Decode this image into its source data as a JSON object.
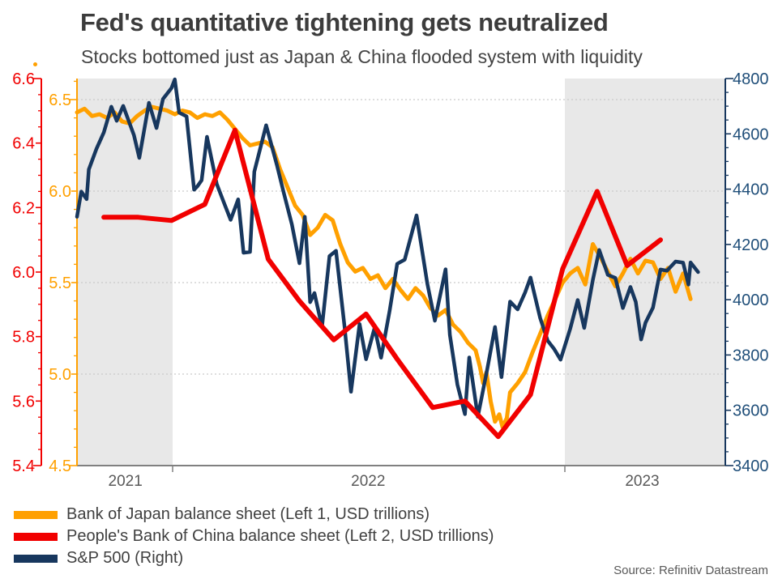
{
  "header": {
    "title": "Fed's quantitative tightening gets neutralized",
    "subtitle": "Stocks bottomed just as Japan & China flooded system with liquidity"
  },
  "source": "Source: Refinitiv Datastream",
  "colors": {
    "orange": "#FFA000",
    "red": "#F10000",
    "navy": "#17375E",
    "right_axis_label": "#1F4E79",
    "band": "#E8E8E8",
    "gridline": "#C9C9C9",
    "axis_gray": "#808080",
    "year_label": "#595959",
    "title_text": "#3C3C3C"
  },
  "legend": [
    {
      "label": "Bank of Japan balance sheet (Left 1, USD trillions)",
      "color": "#FFA000"
    },
    {
      "label": "People's Bank of China balance sheet (Left 2, USD trillions)",
      "color": "#F10000"
    },
    {
      "label": "S&P 500 (Right)",
      "color": "#17375E"
    }
  ],
  "chart_data": {
    "type": "line",
    "title": "Fed's quantitative tightening gets neutralized",
    "subtitle": "Stocks bottomed just as Japan & China flooded system with liquidity",
    "x_axis": {
      "range": [
        "2021-10-04",
        "2023-05-30"
      ],
      "ticks": [
        "2022-01-01",
        "2023-01-01"
      ],
      "year_labels": [
        {
          "text": "2021",
          "date": "2021-11-18"
        },
        {
          "text": "2022",
          "date": "2022-07-02"
        },
        {
          "text": "2023",
          "date": "2023-03-14"
        }
      ]
    },
    "shaded_regions": [
      [
        "2021-10-04",
        "2022-01-01"
      ],
      [
        "2023-01-01",
        "2023-05-30"
      ]
    ],
    "axes": {
      "left1": {
        "min": 4.5,
        "max": 6.615,
        "major_ticks": [
          4.5,
          5.0,
          5.5,
          6.0,
          6.5
        ],
        "minor_step": 0.1,
        "color": "#FFA000",
        "label_color": "#FFA000",
        "gridline_values": [
          5.0,
          5.5,
          6.0,
          6.5
        ]
      },
      "left2": {
        "min": 5.4,
        "max": 6.6,
        "major_ticks": [
          5.4,
          5.6,
          5.8,
          6.0,
          6.2,
          6.4,
          6.6
        ],
        "minor_step": 0.05,
        "color": "#F10000",
        "label_color": "#F10000"
      },
      "right": {
        "min": 3400,
        "max": 4800,
        "major_ticks": [
          3400,
          3600,
          3800,
          4000,
          4200,
          4400,
          4600,
          4800
        ],
        "minor_step": 50,
        "color": "#17375E",
        "label_color": "#1F4E79"
      }
    },
    "series": [
      {
        "name": "Bank of Japan balance sheet (Left 1, USD trillions)",
        "axis": "left1",
        "color": "#FFA000",
        "width": 5,
        "points": [
          [
            "2021-10-04",
            6.43
          ],
          [
            "2021-10-11",
            6.45
          ],
          [
            "2021-10-18",
            6.41
          ],
          [
            "2021-10-25",
            6.42
          ],
          [
            "2021-11-01",
            6.4
          ],
          [
            "2021-11-08",
            6.43
          ],
          [
            "2021-11-15",
            6.38
          ],
          [
            "2021-11-22",
            6.37
          ],
          [
            "2021-11-29",
            6.41
          ],
          [
            "2021-12-06",
            6.44
          ],
          [
            "2021-12-13",
            6.46
          ],
          [
            "2021-12-20",
            6.45
          ],
          [
            "2021-12-27",
            6.44
          ],
          [
            "2022-01-03",
            6.42
          ],
          [
            "2022-01-10",
            6.44
          ],
          [
            "2022-01-17",
            6.43
          ],
          [
            "2022-01-24",
            6.4
          ],
          [
            "2022-01-31",
            6.42
          ],
          [
            "2022-02-07",
            6.41
          ],
          [
            "2022-02-14",
            6.43
          ],
          [
            "2022-02-21",
            6.39
          ],
          [
            "2022-02-28",
            6.34
          ],
          [
            "2022-03-07",
            6.29
          ],
          [
            "2022-03-14",
            6.25
          ],
          [
            "2022-03-21",
            6.26
          ],
          [
            "2022-03-28",
            6.27
          ],
          [
            "2022-04-04",
            6.24
          ],
          [
            "2022-04-11",
            6.12
          ],
          [
            "2022-04-18",
            6.02
          ],
          [
            "2022-04-25",
            5.92
          ],
          [
            "2022-05-02",
            5.87
          ],
          [
            "2022-05-09",
            5.76
          ],
          [
            "2022-05-16",
            5.8
          ],
          [
            "2022-05-23",
            5.87
          ],
          [
            "2022-05-30",
            5.84
          ],
          [
            "2022-06-06",
            5.71
          ],
          [
            "2022-06-13",
            5.61
          ],
          [
            "2022-06-20",
            5.56
          ],
          [
            "2022-06-27",
            5.58
          ],
          [
            "2022-07-04",
            5.52
          ],
          [
            "2022-07-11",
            5.54
          ],
          [
            "2022-07-18",
            5.47
          ],
          [
            "2022-07-25",
            5.52
          ],
          [
            "2022-08-01",
            5.46
          ],
          [
            "2022-08-08",
            5.41
          ],
          [
            "2022-08-15",
            5.47
          ],
          [
            "2022-08-22",
            5.43
          ],
          [
            "2022-08-29",
            5.36
          ],
          [
            "2022-09-05",
            5.32
          ],
          [
            "2022-09-12",
            5.35
          ],
          [
            "2022-09-19",
            5.27
          ],
          [
            "2022-09-26",
            5.23
          ],
          [
            "2022-10-03",
            5.17
          ],
          [
            "2022-10-10",
            5.13
          ],
          [
            "2022-10-14",
            5.04
          ],
          [
            "2022-10-17",
            4.95
          ],
          [
            "2022-10-20",
            5.01
          ],
          [
            "2022-10-24",
            4.85
          ],
          [
            "2022-10-28",
            4.74
          ],
          [
            "2022-11-01",
            4.78
          ],
          [
            "2022-11-04",
            4.71
          ],
          [
            "2022-11-08",
            4.76
          ],
          [
            "2022-11-11",
            4.9
          ],
          [
            "2022-11-18",
            4.95
          ],
          [
            "2022-11-25",
            5.01
          ],
          [
            "2022-12-02",
            5.12
          ],
          [
            "2022-12-09",
            5.22
          ],
          [
            "2022-12-16",
            5.32
          ],
          [
            "2022-12-23",
            5.41
          ],
          [
            "2022-12-30",
            5.5
          ],
          [
            "2023-01-06",
            5.55
          ],
          [
            "2023-01-13",
            5.58
          ],
          [
            "2023-01-20",
            5.49
          ],
          [
            "2023-01-27",
            5.71
          ],
          [
            "2023-02-03",
            5.64
          ],
          [
            "2023-02-10",
            5.56
          ],
          [
            "2023-02-17",
            5.48
          ],
          [
            "2023-02-24",
            5.55
          ],
          [
            "2023-03-03",
            5.63
          ],
          [
            "2023-03-10",
            5.55
          ],
          [
            "2023-03-17",
            5.62
          ],
          [
            "2023-03-24",
            5.61
          ],
          [
            "2023-03-31",
            5.52
          ],
          [
            "2023-04-07",
            5.58
          ],
          [
            "2023-04-14",
            5.45
          ],
          [
            "2023-04-21",
            5.55
          ],
          [
            "2023-04-28",
            5.41
          ]
        ]
      },
      {
        "name": "S&P 500 (Right)",
        "axis": "right",
        "color": "#17375E",
        "width": 4.5,
        "points": [
          [
            "2021-10-04",
            4300
          ],
          [
            "2021-10-08",
            4391
          ],
          [
            "2021-10-13",
            4364
          ],
          [
            "2021-10-15",
            4471
          ],
          [
            "2021-10-22",
            4545
          ],
          [
            "2021-10-29",
            4605
          ],
          [
            "2021-11-05",
            4698
          ],
          [
            "2021-11-10",
            4647
          ],
          [
            "2021-11-16",
            4701
          ],
          [
            "2021-11-26",
            4595
          ],
          [
            "2021-12-01",
            4513
          ],
          [
            "2021-12-10",
            4712
          ],
          [
            "2021-12-17",
            4621
          ],
          [
            "2021-12-23",
            4726
          ],
          [
            "2021-12-31",
            4766
          ],
          [
            "2022-01-03",
            4797
          ],
          [
            "2022-01-07",
            4677
          ],
          [
            "2022-01-14",
            4663
          ],
          [
            "2022-01-21",
            4398
          ],
          [
            "2022-01-24",
            4410
          ],
          [
            "2022-01-28",
            4432
          ],
          [
            "2022-02-02",
            4589
          ],
          [
            "2022-02-11",
            4419
          ],
          [
            "2022-02-18",
            4349
          ],
          [
            "2022-02-24",
            4289
          ],
          [
            "2022-03-03",
            4363
          ],
          [
            "2022-03-08",
            4170
          ],
          [
            "2022-03-14",
            4173
          ],
          [
            "2022-03-18",
            4463
          ],
          [
            "2022-03-29",
            4631
          ],
          [
            "2022-04-08",
            4488
          ],
          [
            "2022-04-14",
            4393
          ],
          [
            "2022-04-22",
            4272
          ],
          [
            "2022-04-29",
            4132
          ],
          [
            "2022-05-04",
            4300
          ],
          [
            "2022-05-09",
            3991
          ],
          [
            "2022-05-13",
            4024
          ],
          [
            "2022-05-20",
            3901
          ],
          [
            "2022-05-27",
            4158
          ],
          [
            "2022-06-02",
            4177
          ],
          [
            "2022-06-10",
            3901
          ],
          [
            "2022-06-16",
            3667
          ],
          [
            "2022-06-24",
            3912
          ],
          [
            "2022-06-30",
            3785
          ],
          [
            "2022-07-08",
            3899
          ],
          [
            "2022-07-14",
            3790
          ],
          [
            "2022-07-22",
            3962
          ],
          [
            "2022-07-29",
            4130
          ],
          [
            "2022-08-05",
            4145
          ],
          [
            "2022-08-16",
            4305
          ],
          [
            "2022-08-26",
            4058
          ],
          [
            "2022-09-02",
            3924
          ],
          [
            "2022-09-12",
            4110
          ],
          [
            "2022-09-16",
            3873
          ],
          [
            "2022-09-23",
            3693
          ],
          [
            "2022-09-30",
            3586
          ],
          [
            "2022-10-04",
            3791
          ],
          [
            "2022-10-12",
            3577
          ],
          [
            "2022-10-21",
            3753
          ],
          [
            "2022-10-28",
            3901
          ],
          [
            "2022-11-03",
            3720
          ],
          [
            "2022-11-11",
            3993
          ],
          [
            "2022-11-18",
            3965
          ],
          [
            "2022-11-25",
            4026
          ],
          [
            "2022-11-30",
            4080
          ],
          [
            "2022-12-09",
            3934
          ],
          [
            "2022-12-16",
            3852
          ],
          [
            "2022-12-22",
            3822
          ],
          [
            "2022-12-28",
            3783
          ],
          [
            "2023-01-06",
            3895
          ],
          [
            "2023-01-13",
            3999
          ],
          [
            "2023-01-19",
            3898
          ],
          [
            "2023-01-27",
            4071
          ],
          [
            "2023-02-02",
            4180
          ],
          [
            "2023-02-10",
            4090
          ],
          [
            "2023-02-17",
            4079
          ],
          [
            "2023-02-24",
            3970
          ],
          [
            "2023-03-03",
            4046
          ],
          [
            "2023-03-08",
            3992
          ],
          [
            "2023-03-13",
            3856
          ],
          [
            "2023-03-17",
            3917
          ],
          [
            "2023-03-24",
            3971
          ],
          [
            "2023-03-31",
            4109
          ],
          [
            "2023-04-06",
            4105
          ],
          [
            "2023-04-14",
            4138
          ],
          [
            "2023-04-21",
            4134
          ],
          [
            "2023-04-26",
            4055
          ],
          [
            "2023-04-28",
            4135
          ],
          [
            "2023-05-05",
            4100
          ]
        ]
      },
      {
        "name": "People's Bank of China balance sheet (Left 2, USD trillions)",
        "axis": "left2",
        "color": "#F10000",
        "width": 6,
        "points": [
          [
            "2021-10-29",
            6.17
          ],
          [
            "2021-11-30",
            6.17
          ],
          [
            "2021-12-31",
            6.16
          ],
          [
            "2022-01-31",
            6.21
          ],
          [
            "2022-02-28",
            6.44
          ],
          [
            "2022-03-31",
            6.04
          ],
          [
            "2022-04-29",
            5.91
          ],
          [
            "2022-05-31",
            5.79
          ],
          [
            "2022-06-30",
            5.87
          ],
          [
            "2022-07-29",
            5.73
          ],
          [
            "2022-08-31",
            5.58
          ],
          [
            "2022-09-30",
            5.6
          ],
          [
            "2022-10-31",
            5.49
          ],
          [
            "2022-11-30",
            5.62
          ],
          [
            "2022-12-30",
            6.01
          ],
          [
            "2023-01-31",
            6.25
          ],
          [
            "2023-02-28",
            6.02
          ],
          [
            "2023-03-31",
            6.1
          ]
        ]
      }
    ]
  }
}
